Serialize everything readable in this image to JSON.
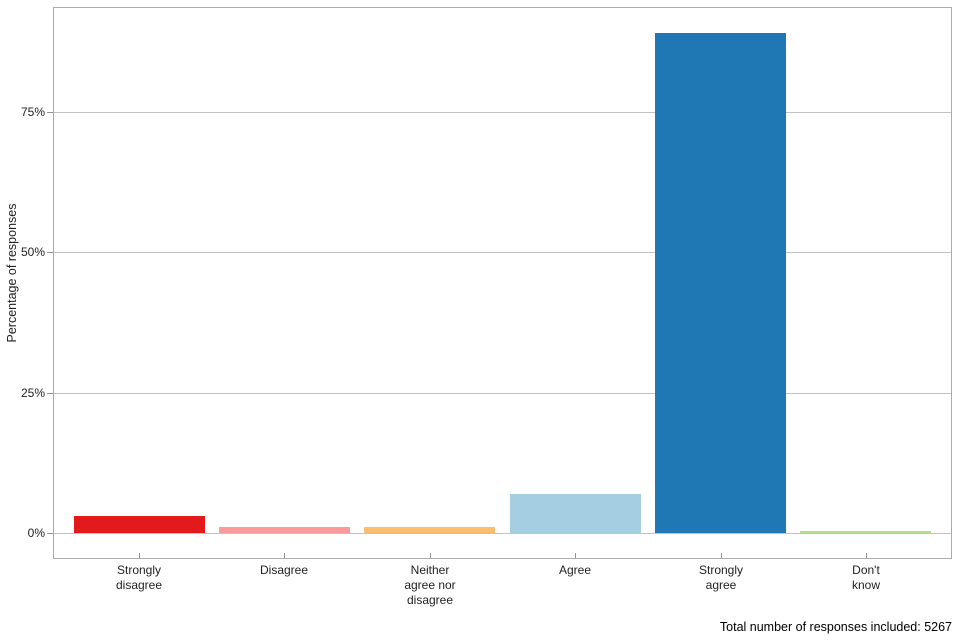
{
  "chart_data": {
    "type": "bar",
    "title": "",
    "xlabel": "",
    "ylabel": "Percentage of responses",
    "categories": [
      "Strongly disagree",
      "Disagree",
      "Neither agree nor disagree",
      "Agree",
      "Strongly agree",
      "Don't know"
    ],
    "category_label_lines": [
      [
        "Strongly",
        "disagree"
      ],
      [
        "Disagree"
      ],
      [
        "Neither",
        "agree nor",
        "disagree"
      ],
      [
        "Agree"
      ],
      [
        "Strongly",
        "agree"
      ],
      [
        "Don't",
        "know"
      ]
    ],
    "values": [
      3,
      1,
      1,
      7,
      89,
      0.4
    ],
    "unit": "%",
    "bar_colors": [
      "#e31a1c",
      "#fb9a99",
      "#fdbf6f",
      "#a6cee3",
      "#1f78b4",
      "#b2df8a"
    ],
    "y_ticks": [
      0,
      25,
      50,
      75
    ],
    "y_tick_labels": [
      "0%",
      "25%",
      "50%",
      "75%"
    ],
    "ylim": [
      -4.45,
      93.45
    ],
    "grid": true,
    "legend": false,
    "caption": "Total number of responses included: 5267"
  },
  "colors": {
    "background": "#ffffff",
    "panel_border": "#ababab",
    "gridline": "#c3c3c3",
    "tick": "#919191",
    "text": "#1f1f1f"
  }
}
